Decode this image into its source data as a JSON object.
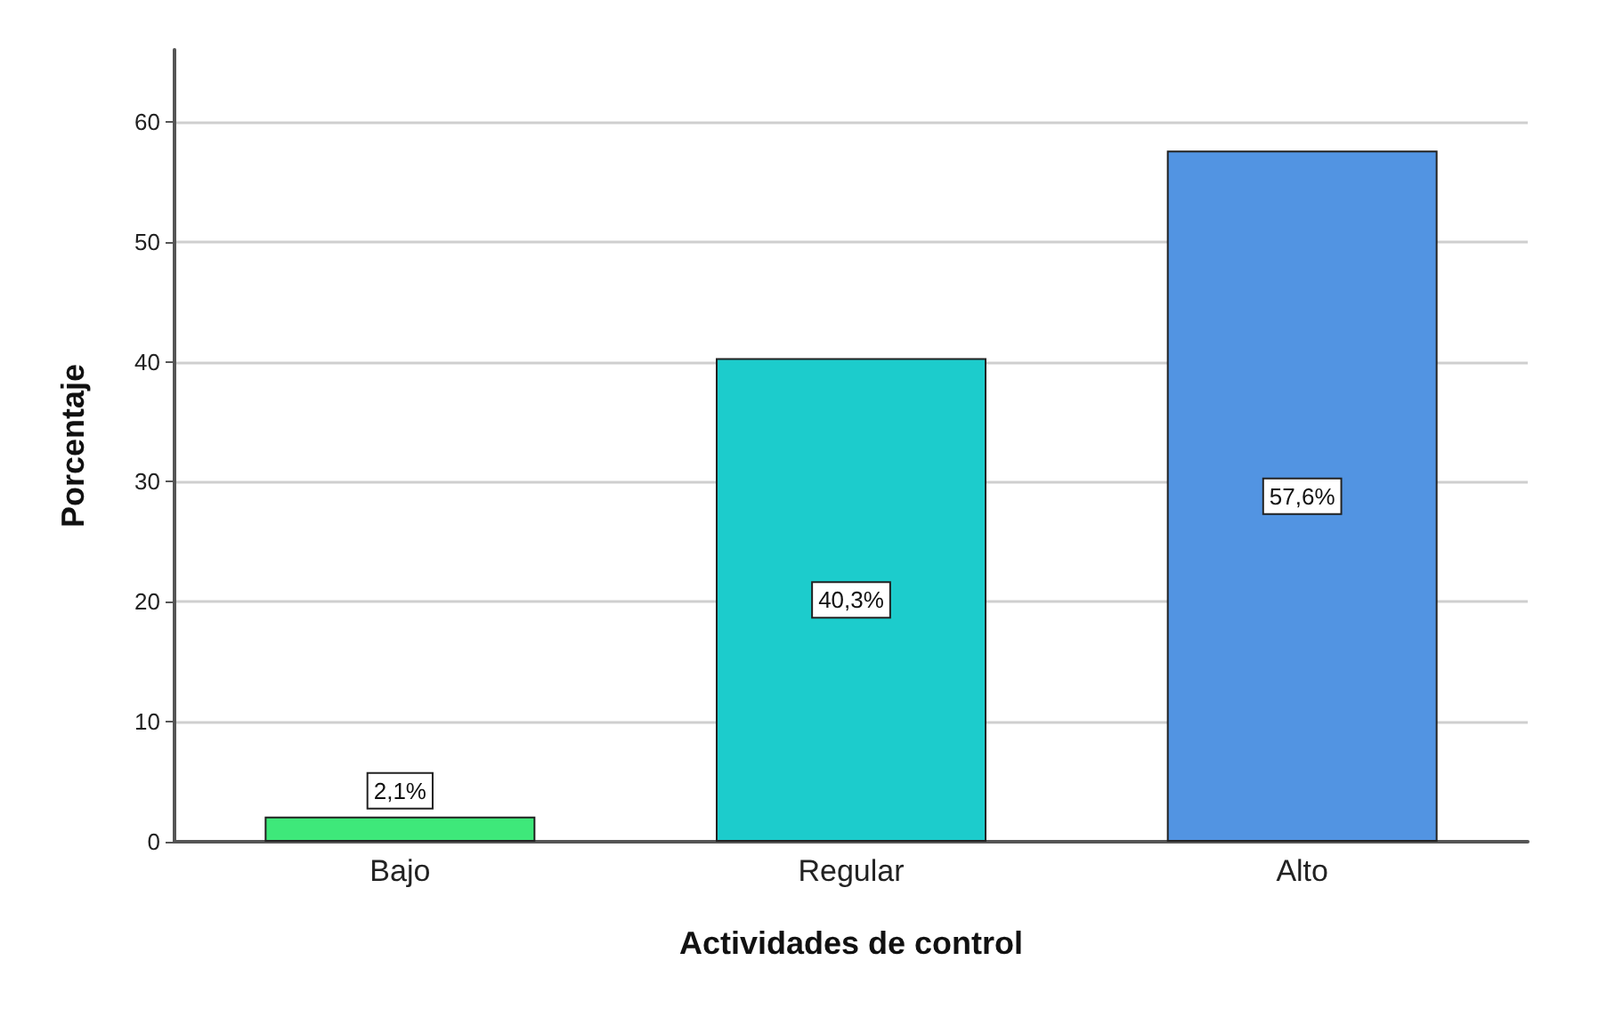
{
  "chart_data": {
    "type": "bar",
    "xlabel": "Actividades de control",
    "ylabel": "Porcentaje",
    "categories": [
      "Bajo",
      "Regular",
      "Alto"
    ],
    "values": [
      2.1,
      40.3,
      57.6
    ],
    "colors": [
      "#3ee87a",
      "#1ccccc",
      "#5294e2"
    ],
    "value_labels": [
      "2,1%",
      "40,3%",
      "57,6%"
    ],
    "ylim": [
      0,
      66
    ],
    "yticks": [
      0,
      10,
      20,
      30,
      40,
      50,
      60
    ],
    "grid": "y"
  }
}
